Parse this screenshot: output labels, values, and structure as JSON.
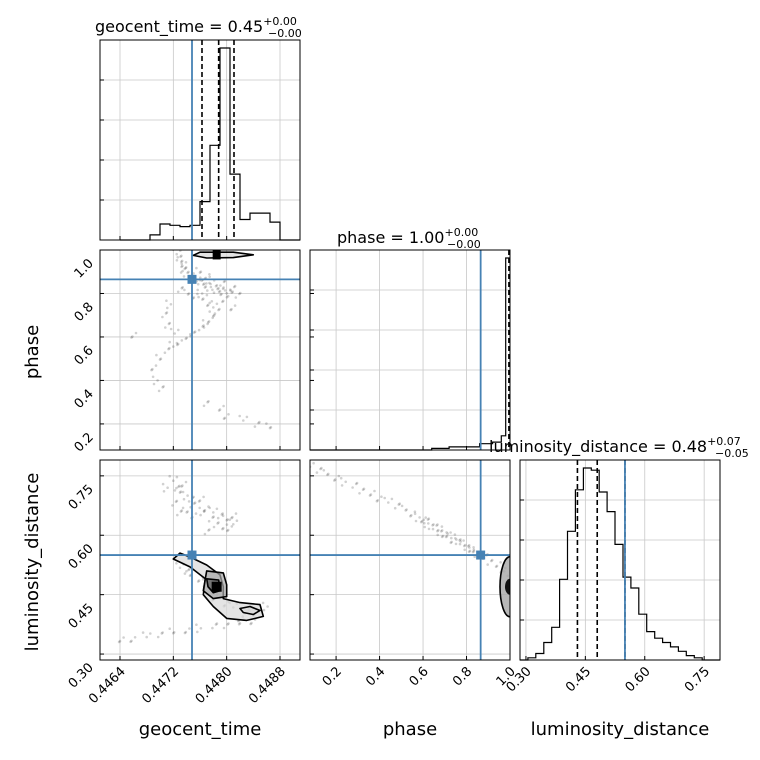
{
  "chart_data": {
    "type": "corner",
    "parameters": [
      "geocent_time",
      "phase",
      "luminosity_distance"
    ],
    "truth": {
      "geocent_time": 0.44748,
      "phase": 0.865,
      "luminosity_distance": 0.55
    },
    "titles": [
      {
        "param": "geocent_time",
        "main": "geocent_time = 0.45",
        "plus": "+0.00",
        "minus": "−0.00"
      },
      {
        "param": "phase",
        "main": "phase = 1.00",
        "plus": "+0.00",
        "minus": "−0.00"
      },
      {
        "param": "luminosity_distance",
        "main": "luminosity_distance = 0.48",
        "plus": "+0.07",
        "minus": "−0.05"
      }
    ],
    "ranges": {
      "geocent_time": [
        0.4461,
        0.4491
      ],
      "phase": [
        0.08,
        1.0
      ],
      "luminosity_distance": [
        0.285,
        0.79
      ]
    },
    "ticks": {
      "geocent_time": [
        {
          "value": 0.4464,
          "label": "0.4464"
        },
        {
          "value": 0.4472,
          "label": "0.4472"
        },
        {
          "value": 0.448,
          "label": "0.4480"
        },
        {
          "value": 0.4488,
          "label": "0.4488"
        }
      ],
      "phase": [
        {
          "value": 0.2,
          "label": "0.2"
        },
        {
          "value": 0.4,
          "label": "0.4"
        },
        {
          "value": 0.6,
          "label": "0.6"
        },
        {
          "value": 0.8,
          "label": "0.8"
        },
        {
          "value": 1.0,
          "label": "1.0"
        }
      ],
      "luminosity_distance": [
        {
          "value": 0.3,
          "label": "0.30"
        },
        {
          "value": 0.45,
          "label": "0.45"
        },
        {
          "value": 0.6,
          "label": "0.60"
        },
        {
          "value": 0.75,
          "label": "0.75"
        }
      ]
    },
    "quantiles": {
      "geocent_time": [
        0.44763,
        0.44788,
        0.44811
      ],
      "phase": [
        0.995,
        0.999,
        1.0
      ],
      "luminosity_distance": [
        0.43,
        0.48,
        0.55
      ]
    },
    "histograms": {
      "geocent_time": {
        "edges": [
          0.4464,
          0.44655,
          0.4467,
          0.44685,
          0.447,
          0.44715,
          0.4473,
          0.44745,
          0.4476,
          0.44775,
          0.4479,
          0.44805,
          0.4482,
          0.44835,
          0.4485,
          0.44865,
          0.4488,
          0.44895,
          0.4491
        ],
        "counts": [
          0,
          0,
          0,
          8,
          25,
          23,
          21,
          23,
          60,
          148,
          300,
          103,
          32,
          42,
          42,
          28,
          0,
          0
        ]
      },
      "phase": {
        "edges": [
          0.08,
          0.16,
          0.24,
          0.32,
          0.4,
          0.48,
          0.56,
          0.64,
          0.72,
          0.8,
          0.86,
          0.92,
          0.96,
          0.98,
          1.0
        ],
        "counts": [
          0,
          0,
          0,
          0,
          0,
          0,
          0,
          1,
          2,
          2,
          4,
          5,
          9,
          122
        ]
      },
      "luminosity_distance": {
        "edges": [
          0.285,
          0.305,
          0.325,
          0.345,
          0.365,
          0.385,
          0.405,
          0.425,
          0.445,
          0.465,
          0.485,
          0.505,
          0.525,
          0.545,
          0.565,
          0.585,
          0.605,
          0.625,
          0.645,
          0.665,
          0.685,
          0.705,
          0.725,
          0.745,
          0.765,
          0.79
        ],
        "counts": [
          0,
          1,
          3,
          8,
          15,
          37,
          59,
          78,
          88,
          87,
          77,
          68,
          53,
          38,
          33,
          21,
          13,
          10,
          8,
          6,
          4,
          2,
          1,
          0,
          0
        ]
      }
    },
    "samples_phase_vs_time": [
      [
        0.44725,
        0.985
      ],
      [
        0.44728,
        0.965
      ],
      [
        0.44732,
        0.95
      ],
      [
        0.44735,
        0.935
      ],
      [
        0.44738,
        0.92
      ],
      [
        0.44733,
        0.905
      ],
      [
        0.4474,
        0.895
      ],
      [
        0.44745,
        0.88
      ],
      [
        0.4475,
        0.87
      ],
      [
        0.44755,
        0.86
      ],
      [
        0.4476,
        0.855
      ],
      [
        0.44765,
        0.845
      ],
      [
        0.4477,
        0.84
      ],
      [
        0.44775,
        0.83
      ],
      [
        0.4478,
        0.825
      ],
      [
        0.44785,
        0.82
      ],
      [
        0.4479,
        0.815
      ],
      [
        0.44795,
        0.81
      ],
      [
        0.448,
        0.805
      ],
      [
        0.44805,
        0.8
      ],
      [
        0.4476,
        0.9
      ],
      [
        0.4477,
        0.88
      ],
      [
        0.4478,
        0.86
      ],
      [
        0.44792,
        0.845
      ],
      [
        0.4481,
        0.83
      ],
      [
        0.44765,
        0.78
      ],
      [
        0.44775,
        0.76
      ],
      [
        0.4478,
        0.74
      ],
      [
        0.44785,
        0.72
      ],
      [
        0.4478,
        0.7
      ],
      [
        0.44775,
        0.68
      ],
      [
        0.4477,
        0.66
      ],
      [
        0.4476,
        0.64
      ],
      [
        0.4475,
        0.62
      ],
      [
        0.4474,
        0.6
      ],
      [
        0.4473,
        0.58
      ],
      [
        0.4472,
        0.56
      ],
      [
        0.4471,
        0.54
      ],
      [
        0.447,
        0.5
      ],
      [
        0.4469,
        0.46
      ],
      [
        0.44695,
        0.4
      ],
      [
        0.447,
        0.36
      ],
      [
        0.4477,
        0.3
      ],
      [
        0.4479,
        0.27
      ],
      [
        0.448,
        0.24
      ],
      [
        0.44825,
        0.22
      ],
      [
        0.44845,
        0.2
      ],
      [
        0.44865,
        0.185
      ],
      [
        0.4466,
        0.61
      ],
      [
        0.44715,
        0.75
      ],
      [
        0.44705,
        0.7
      ],
      [
        0.44712,
        0.66
      ],
      [
        0.44795,
        0.77
      ],
      [
        0.4481,
        0.74
      ],
      [
        0.44722,
        0.62
      ],
      [
        0.4473,
        0.82
      ],
      [
        0.44742,
        0.8
      ],
      [
        0.44752,
        0.79
      ],
      [
        0.44762,
        0.8
      ],
      [
        0.44815,
        0.79
      ]
    ],
    "samples_ld_vs_time": [
      [
        0.4472,
        0.74
      ],
      [
        0.44725,
        0.72
      ],
      [
        0.4473,
        0.71
      ],
      [
        0.44735,
        0.73
      ],
      [
        0.4474,
        0.7
      ],
      [
        0.44745,
        0.69
      ],
      [
        0.4475,
        0.68
      ],
      [
        0.4476,
        0.69
      ],
      [
        0.4477,
        0.67
      ],
      [
        0.4478,
        0.66
      ],
      [
        0.4479,
        0.65
      ],
      [
        0.448,
        0.64
      ],
      [
        0.4481,
        0.65
      ],
      [
        0.44765,
        0.66
      ],
      [
        0.44775,
        0.64
      ],
      [
        0.44785,
        0.63
      ],
      [
        0.44795,
        0.62
      ],
      [
        0.44805,
        0.62
      ],
      [
        0.4481,
        0.63
      ],
      [
        0.4477,
        0.61
      ],
      [
        0.4474,
        0.66
      ],
      [
        0.4475,
        0.65
      ],
      [
        0.4471,
        0.72
      ],
      [
        0.4472,
        0.68
      ],
      [
        0.4473,
        0.66
      ],
      [
        0.4464,
        0.335
      ],
      [
        0.4466,
        0.34
      ],
      [
        0.4468,
        0.345
      ],
      [
        0.447,
        0.35
      ],
      [
        0.4472,
        0.355
      ],
      [
        0.4474,
        0.36
      ],
      [
        0.4476,
        0.365
      ],
      [
        0.4478,
        0.37
      ],
      [
        0.448,
        0.375
      ],
      [
        0.4482,
        0.38
      ],
      [
        0.4484,
        0.385
      ],
      [
        0.4473,
        0.52
      ],
      [
        0.4474,
        0.51
      ],
      [
        0.44745,
        0.5
      ],
      [
        0.4476,
        0.49
      ],
      [
        0.4477,
        0.48
      ],
      [
        0.4478,
        0.47
      ],
      [
        0.4479,
        0.46
      ],
      [
        0.4478,
        0.44
      ],
      [
        0.448,
        0.43
      ],
      [
        0.4481,
        0.42
      ],
      [
        0.4483,
        0.41
      ],
      [
        0.4484,
        0.4
      ],
      [
        0.4482,
        0.39
      ],
      [
        0.4486,
        0.42
      ]
    ],
    "samples_ld_vs_phase": [
      [
        0.08,
        0.775
      ],
      [
        0.12,
        0.765
      ],
      [
        0.16,
        0.755
      ],
      [
        0.2,
        0.745
      ],
      [
        0.24,
        0.735
      ],
      [
        0.28,
        0.725
      ],
      [
        0.32,
        0.715
      ],
      [
        0.36,
        0.705
      ],
      [
        0.4,
        0.695
      ],
      [
        0.44,
        0.685
      ],
      [
        0.48,
        0.675
      ],
      [
        0.52,
        0.665
      ],
      [
        0.55,
        0.655
      ],
      [
        0.58,
        0.645
      ],
      [
        0.61,
        0.635
      ],
      [
        0.64,
        0.625
      ],
      [
        0.67,
        0.615
      ],
      [
        0.7,
        0.605
      ],
      [
        0.73,
        0.595
      ],
      [
        0.76,
        0.585
      ],
      [
        0.79,
        0.575
      ],
      [
        0.82,
        0.565
      ],
      [
        0.85,
        0.555
      ],
      [
        0.88,
        0.545
      ],
      [
        0.91,
        0.535
      ],
      [
        0.94,
        0.525
      ],
      [
        0.97,
        0.515
      ],
      [
        0.99,
        0.5
      ],
      [
        0.995,
        0.48
      ],
      [
        0.998,
        0.46
      ],
      [
        0.6,
        0.64
      ],
      [
        0.62,
        0.63
      ],
      [
        0.65,
        0.62
      ],
      [
        0.68,
        0.61
      ],
      [
        0.71,
        0.6
      ],
      [
        0.74,
        0.59
      ],
      [
        0.77,
        0.58
      ],
      [
        0.8,
        0.57
      ],
      [
        0.83,
        0.56
      ],
      [
        0.86,
        0.55
      ]
    ],
    "contours_ld_vs_time": [
      [
        [
          0.4473,
          0.555
        ],
        [
          0.44745,
          0.545
        ],
        [
          0.4477,
          0.525
        ],
        [
          0.4479,
          0.5
        ],
        [
          0.44795,
          0.47
        ],
        [
          0.44795,
          0.44
        ],
        [
          0.4482,
          0.43
        ],
        [
          0.4485,
          0.425
        ],
        [
          0.44855,
          0.395
        ],
        [
          0.4483,
          0.385
        ],
        [
          0.448,
          0.39
        ],
        [
          0.4478,
          0.42
        ],
        [
          0.44765,
          0.45
        ],
        [
          0.44768,
          0.49
        ],
        [
          0.44745,
          0.52
        ],
        [
          0.4472,
          0.54
        ]
      ],
      [
        [
          0.4477,
          0.51
        ],
        [
          0.44795,
          0.505
        ],
        [
          0.448,
          0.475
        ],
        [
          0.448,
          0.445
        ],
        [
          0.4478,
          0.44
        ],
        [
          0.44765,
          0.46
        ],
        [
          0.44768,
          0.49
        ]
      ],
      [
        [
          0.4477,
          0.49
        ],
        [
          0.44788,
          0.487
        ],
        [
          0.4479,
          0.46
        ],
        [
          0.4478,
          0.455
        ],
        [
          0.44772,
          0.47
        ]
      ],
      [
        [
          0.4482,
          0.415
        ],
        [
          0.44835,
          0.42
        ],
        [
          0.4485,
          0.41
        ],
        [
          0.4484,
          0.4
        ],
        [
          0.44825,
          0.405
        ]
      ]
    ],
    "contours_phase_vs_time": [
      [
        [
          0.4476,
          0.99
        ],
        [
          0.4481,
          0.99
        ],
        [
          0.4484,
          0.978
        ],
        [
          0.4481,
          0.965
        ],
        [
          0.4477,
          0.963
        ],
        [
          0.4475,
          0.975
        ]
      ]
    ]
  }
}
